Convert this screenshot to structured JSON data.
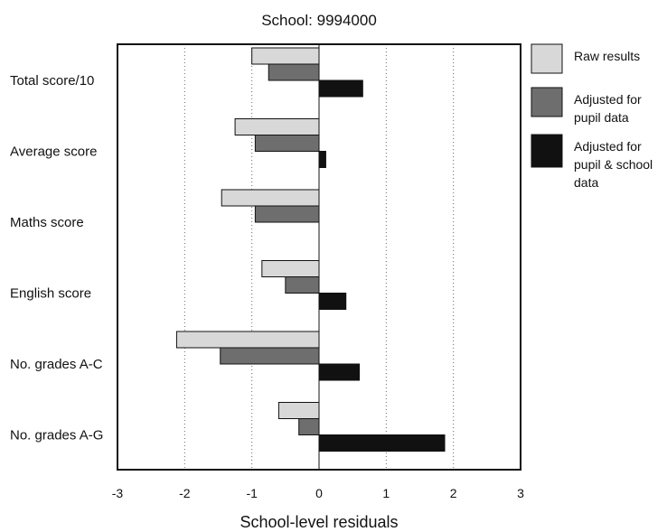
{
  "chart_data": {
    "type": "bar",
    "orientation": "horizontal",
    "title": "School: 9994000",
    "xlabel": "School-level residuals",
    "ylabel": "",
    "xlim": [
      -3,
      3
    ],
    "x_ticks": [
      "-3",
      "-2",
      "-1",
      "0",
      "1",
      "2",
      "3"
    ],
    "grid": "vertical dotted",
    "legend_position": "right",
    "categories": [
      "Total score/10",
      "Average score",
      "Maths score",
      "English score",
      "No. grades A-C",
      "No. grades A-G"
    ],
    "series": [
      {
        "name": "Raw results",
        "color": "#d8d8d8",
        "values": [
          -1.0,
          -1.25,
          -1.45,
          -0.85,
          -2.12,
          -0.6
        ]
      },
      {
        "name": "Adjusted for pupil data",
        "color": "#6e6e6e",
        "values": [
          -0.75,
          -0.95,
          -0.95,
          -0.5,
          -1.47,
          -0.3
        ]
      },
      {
        "name": "Adjusted for pupil & school data",
        "color": "#111111",
        "values": [
          0.65,
          0.1,
          0.0,
          0.4,
          0.6,
          1.87
        ]
      }
    ],
    "legend_lines": [
      [
        "Raw results"
      ],
      [
        "Adjusted for",
        "pupil data"
      ],
      [
        "Adjusted for",
        "pupil & school",
        "data"
      ]
    ]
  }
}
